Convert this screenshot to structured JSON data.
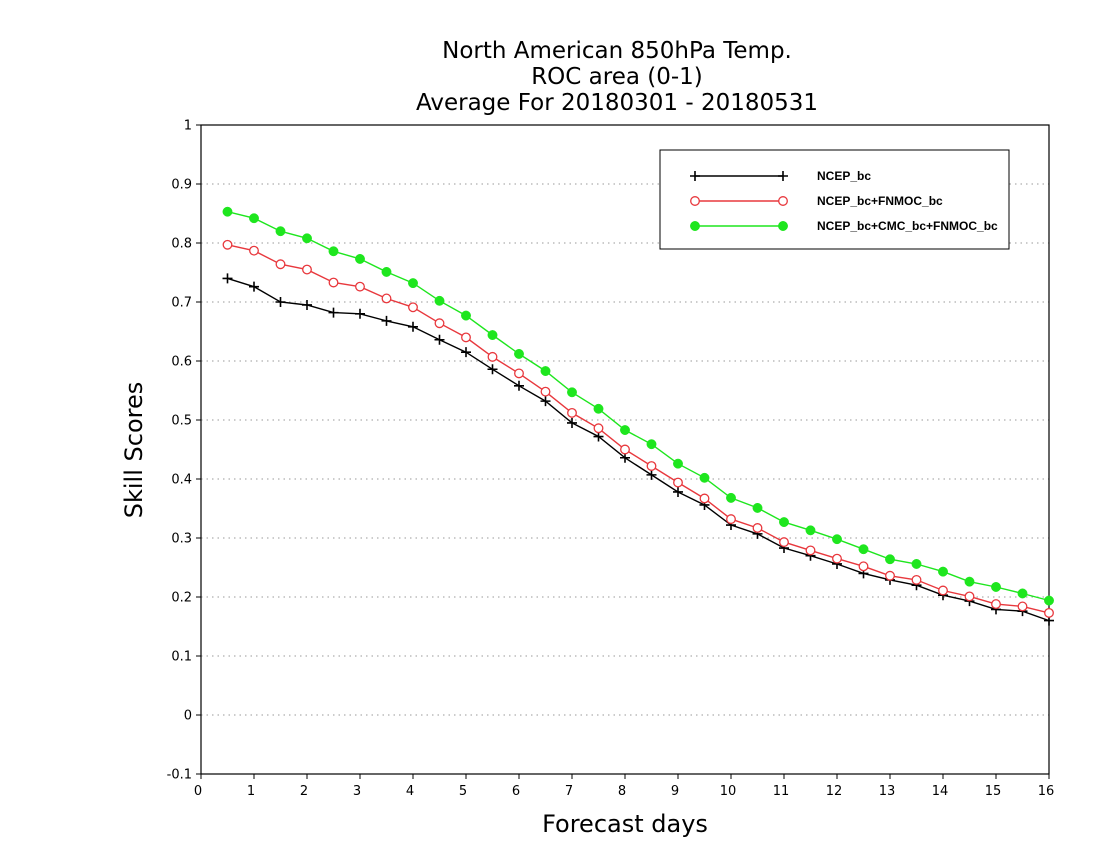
{
  "chart_data": {
    "type": "line",
    "title_lines": [
      "North American 850hPa Temp.",
      "ROC area (0-1)",
      "Average For 20180301 - 20180531"
    ],
    "xlabel": "Forecast days",
    "ylabel": "Skill Scores",
    "xlim": [
      0,
      16
    ],
    "ylim": [
      -0.1,
      1
    ],
    "x_ticks": [
      0,
      1,
      2,
      3,
      4,
      5,
      6,
      7,
      8,
      9,
      10,
      11,
      12,
      13,
      14,
      15,
      16
    ],
    "y_ticks": [
      -0.1,
      0,
      0.1,
      0.2,
      0.3,
      0.4,
      0.5,
      0.6,
      0.7,
      0.8,
      0.9,
      1
    ],
    "y_tick_labels": [
      "-0.1",
      "0",
      "0.1",
      "0.2",
      "0.3",
      "0.4",
      "0.5",
      "0.6",
      "0.7",
      "0.8",
      "0.9",
      "1"
    ],
    "grid": "horizontal dotted",
    "legend_position": "top-right",
    "x": [
      0.5,
      1.0,
      1.5,
      2.0,
      2.5,
      3.0,
      3.5,
      4.0,
      4.5,
      5.0,
      5.5,
      6.0,
      6.5,
      7.0,
      7.5,
      8.0,
      8.5,
      9.0,
      9.5,
      10.0,
      10.5,
      11.0,
      11.5,
      12.0,
      12.5,
      13.0,
      13.5,
      14.0,
      14.5,
      15.0,
      15.5,
      16.0
    ],
    "series": [
      {
        "name": "NCEP_bc",
        "color": "#000000",
        "marker": "plus",
        "values": [
          0.74,
          0.726,
          0.7,
          0.695,
          0.682,
          0.68,
          0.668,
          0.658,
          0.636,
          0.615,
          0.586,
          0.558,
          0.532,
          0.495,
          0.472,
          0.436,
          0.407,
          0.378,
          0.356,
          0.322,
          0.307,
          0.283,
          0.27,
          0.256,
          0.24,
          0.229,
          0.22,
          0.203,
          0.193,
          0.179,
          0.176,
          0.16
        ]
      },
      {
        "name": "NCEP_bc+FNMOC_bc",
        "color": "#e8383d",
        "marker": "open-circle",
        "values": [
          0.797,
          0.787,
          0.764,
          0.755,
          0.733,
          0.726,
          0.706,
          0.691,
          0.664,
          0.64,
          0.607,
          0.579,
          0.548,
          0.512,
          0.486,
          0.45,
          0.422,
          0.394,
          0.367,
          0.332,
          0.317,
          0.293,
          0.279,
          0.265,
          0.252,
          0.236,
          0.229,
          0.211,
          0.201,
          0.188,
          0.184,
          0.173
        ]
      },
      {
        "name": "NCEP_bc+CMC_bc+FNMOC_bc",
        "color": "#1ee61e",
        "marker": "filled-circle",
        "values": [
          0.853,
          0.842,
          0.82,
          0.808,
          0.786,
          0.773,
          0.751,
          0.732,
          0.702,
          0.677,
          0.644,
          0.612,
          0.583,
          0.547,
          0.519,
          0.483,
          0.459,
          0.426,
          0.402,
          0.368,
          0.351,
          0.327,
          0.313,
          0.298,
          0.281,
          0.264,
          0.256,
          0.243,
          0.226,
          0.217,
          0.206,
          0.194
        ]
      }
    ]
  }
}
